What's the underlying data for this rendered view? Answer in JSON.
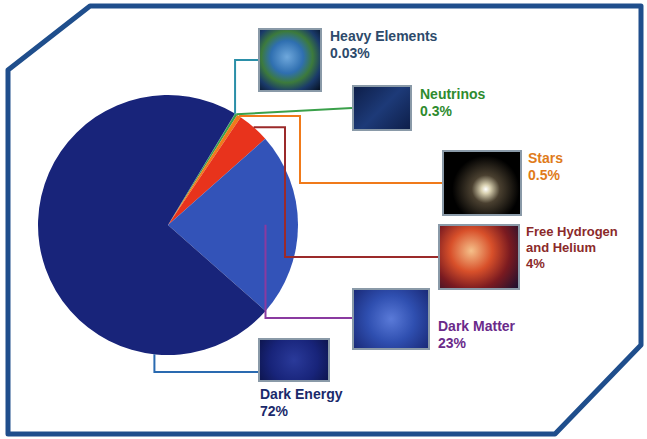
{
  "chart_data": {
    "type": "pie",
    "categories": [
      "Heavy Elements",
      "Neutrinos",
      "Stars",
      "Free Hydrogen and Helium",
      "Dark Matter",
      "Dark Energy"
    ],
    "values": [
      0.03,
      0.3,
      0.5,
      4,
      23,
      72
    ],
    "value_labels": [
      "0.03%",
      "0.3%",
      "0.5%",
      "4%",
      "23%",
      "72%"
    ],
    "colors": [
      "#2aa0a8",
      "#3aa04a",
      "#f07a1a",
      "#e8331c",
      "#3353b8",
      "#18247a"
    ],
    "data_labels": true
  }
}
